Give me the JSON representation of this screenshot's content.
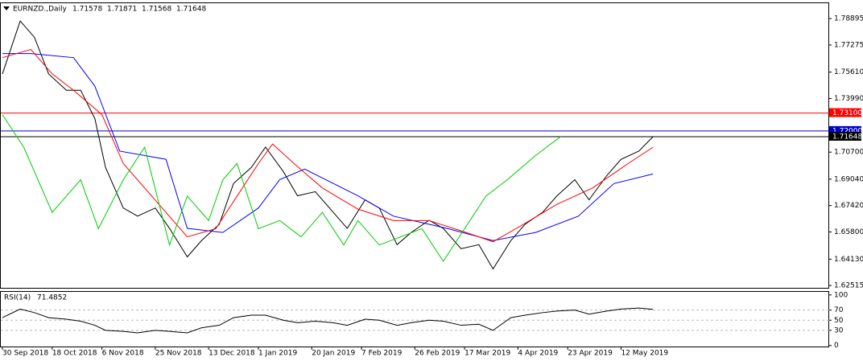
{
  "chart_data": [
    {
      "type": "line",
      "title": "EURNZD.,Daily",
      "ohlc": [
        1.71578,
        1.71871,
        1.71568,
        1.71648
      ],
      "xlim": [
        0,
        233
      ],
      "ylim": [
        1.6237,
        1.7984
      ],
      "yticks": [
        1.78895,
        1.77275,
        {
          "value": 1.7561,
          "label": "1.75610"
        },
        {
          "value": 1.7399,
          "label": "1.73990"
        },
        {
          "value": 1.707,
          "label": "1.70700"
        },
        {
          "value": 1.6904,
          "label": "1.69040"
        },
        {
          "value": 1.6742,
          "label": "1.67420"
        },
        {
          "value": 1.658,
          "label": "1.65800"
        },
        {
          "value": 1.6413,
          "label": "1.64130"
        },
        1.62515
      ],
      "levels": [
        {
          "value": 1.731,
          "label": "1.73100",
          "color": "#ff0000"
        },
        {
          "value": 1.72,
          "label": "1.72000",
          "color": "#0000cc"
        },
        {
          "value": 1.71648,
          "label": "1.71648",
          "color": "#000000"
        }
      ],
      "series": [
        {
          "color": "#000000",
          "x": [
            0,
            5,
            9,
            13,
            18,
            22,
            26,
            29,
            34,
            38,
            43,
            47,
            52,
            56,
            61,
            65,
            70,
            74,
            79,
            83,
            88,
            93,
            97,
            102,
            106,
            111,
            115,
            120,
            124,
            129,
            134,
            138,
            143,
            147,
            152,
            156,
            161,
            165,
            170,
            174,
            179,
            183
          ],
          "values": [
            1.755,
            1.7875,
            1.7775,
            1.755,
            1.745,
            1.745,
            1.7276,
            1.6976,
            1.6727,
            1.6677,
            1.6727,
            1.6602,
            1.6427,
            1.6527,
            1.6627,
            1.6877,
            1.6976,
            1.7101,
            1.6951,
            1.6802,
            1.6827,
            1.6702,
            1.6602,
            1.6777,
            1.6727,
            1.6502,
            1.6577,
            1.6652,
            1.6602,
            1.6477,
            1.6502,
            1.6353,
            1.6527,
            1.6627,
            1.6702,
            1.6802,
            1.6901,
            1.6777,
            1.6926,
            1.7026,
            1.7076,
            1.71648
          ]
        },
        {
          "color": "#0000ff",
          "x": [
            0,
            8,
            20,
            26,
            33,
            46,
            52,
            62,
            72,
            78,
            85,
            100,
            110,
            125,
            138,
            150,
            162,
            172,
            183
          ],
          "values": [
            1.7675,
            1.7675,
            1.765,
            1.7475,
            1.7076,
            1.7026,
            1.6602,
            1.6577,
            1.6727,
            1.6901,
            1.6966,
            1.6802,
            1.6677,
            1.6602,
            1.6527,
            1.6577,
            1.6677,
            1.6877,
            1.6936
          ]
        },
        {
          "color": "#ff0000",
          "x": [
            0,
            8,
            14,
            20,
            28,
            34,
            44,
            52,
            60,
            66,
            72,
            76,
            82,
            90,
            100,
            110,
            120,
            130,
            138,
            146,
            156,
            166,
            176,
            183
          ],
          "values": [
            1.765,
            1.77,
            1.755,
            1.745,
            1.73,
            1.7,
            1.675,
            1.655,
            1.66,
            1.68,
            1.7,
            1.712,
            1.7,
            1.685,
            1.672,
            1.665,
            1.665,
            1.658,
            1.652,
            1.662,
            1.675,
            1.685,
            1.7,
            1.71
          ]
        },
        {
          "color": "#00cc00",
          "x": [
            0,
            6,
            14,
            22,
            27,
            34,
            40,
            47,
            52,
            58,
            62,
            66,
            72,
            78,
            84,
            90,
            96,
            100,
            106,
            112,
            118,
            124,
            130,
            136,
            142,
            150,
            157
          ],
          "values": [
            1.73,
            1.71,
            1.67,
            1.69,
            1.66,
            1.69,
            1.71,
            1.65,
            1.68,
            1.665,
            1.69,
            1.7,
            1.66,
            1.665,
            1.655,
            1.67,
            1.65,
            1.665,
            1.65,
            1.655,
            1.66,
            1.64,
            1.66,
            1.68,
            1.69,
            1.705,
            1.7165
          ]
        }
      ]
    },
    {
      "type": "line",
      "title": "RSI(14)",
      "last": 71.4852,
      "xlim": [
        0,
        233
      ],
      "ylim": [
        -2,
        106
      ],
      "yticks": [
        0,
        30,
        50,
        70,
        100
      ],
      "grid": [
        30,
        50,
        70
      ],
      "xticks": [
        {
          "value": 0,
          "label": "30 Sep 2018"
        },
        {
          "value": 14,
          "label": "18 Oct 2018"
        },
        {
          "value": 28,
          "label": "6 Nov 2018"
        },
        {
          "value": 43,
          "label": "25 Nov 2018"
        },
        {
          "value": 58,
          "label": "13 Dec 2018"
        },
        {
          "value": 72,
          "label": "1 Jan 2019"
        },
        {
          "value": 87,
          "label": "20 Jan 2019"
        },
        {
          "value": 101,
          "label": "7 Feb 2019"
        },
        {
          "value": 116,
          "label": "26 Feb 2019"
        },
        {
          "value": 130,
          "label": "17 Mar 2019"
        },
        {
          "value": 145,
          "label": "4 Apr 2019"
        },
        {
          "value": 159,
          "label": "23 Apr 2019"
        },
        {
          "value": 174,
          "label": "12 May 2019"
        }
      ],
      "series": [
        {
          "color": "#000000",
          "x": [
            0,
            5,
            9,
            13,
            18,
            22,
            26,
            29,
            34,
            38,
            43,
            47,
            52,
            56,
            61,
            65,
            70,
            74,
            79,
            83,
            88,
            93,
            97,
            102,
            106,
            111,
            115,
            120,
            124,
            129,
            134,
            138,
            143,
            147,
            152,
            156,
            161,
            165,
            170,
            174,
            179,
            183
          ],
          "values": [
            55,
            72,
            65,
            55,
            52,
            48,
            40,
            30,
            28,
            25,
            30,
            28,
            25,
            35,
            40,
            55,
            60,
            60,
            50,
            45,
            48,
            45,
            40,
            52,
            50,
            40,
            45,
            50,
            48,
            40,
            42,
            30,
            55,
            60,
            65,
            68,
            70,
            62,
            68,
            72,
            74,
            71.4852
          ]
        }
      ]
    }
  ]
}
